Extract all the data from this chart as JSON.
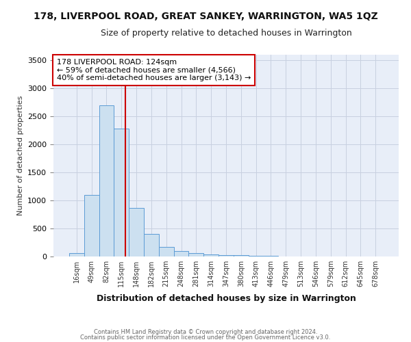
{
  "title": "178, LIVERPOOL ROAD, GREAT SANKEY, WARRINGTON, WA5 1QZ",
  "subtitle": "Size of property relative to detached houses in Warrington",
  "xlabel": "Distribution of detached houses by size in Warrington",
  "ylabel": "Number of detached properties",
  "bar_color": "#cce0f0",
  "bar_edge_color": "#5b9bd5",
  "bin_labels": [
    "16sqm",
    "49sqm",
    "82sqm",
    "115sqm",
    "148sqm",
    "182sqm",
    "215sqm",
    "248sqm",
    "281sqm",
    "314sqm",
    "347sqm",
    "380sqm",
    "413sqm",
    "446sqm",
    "479sqm",
    "513sqm",
    "546sqm",
    "579sqm",
    "612sqm",
    "645sqm",
    "678sqm"
  ],
  "bar_values": [
    55,
    1100,
    2700,
    2280,
    870,
    400,
    175,
    95,
    55,
    38,
    28,
    22,
    14,
    18,
    2,
    1,
    1,
    0,
    0,
    0,
    0
  ],
  "red_line_x": 3.27,
  "annotation_text": "178 LIVERPOOL ROAD: 124sqm\n← 59% of detached houses are smaller (4,566)\n40% of semi-detached houses are larger (3,143) →",
  "annotation_box_color": "#ffffff",
  "annotation_box_edge": "#cc0000",
  "red_line_color": "#cc0000",
  "ylim": [
    0,
    3600
  ],
  "yticks": [
    0,
    500,
    1000,
    1500,
    2000,
    2500,
    3000,
    3500
  ],
  "footer1": "Contains HM Land Registry data © Crown copyright and database right 2024.",
  "footer2": "Contains public sector information licensed under the Open Government Licence v3.0.",
  "bg_color": "#ffffff",
  "plot_bg_color": "#e8eef8",
  "grid_color": "#c8d0e0",
  "title_fontsize": 10,
  "subtitle_fontsize": 9
}
